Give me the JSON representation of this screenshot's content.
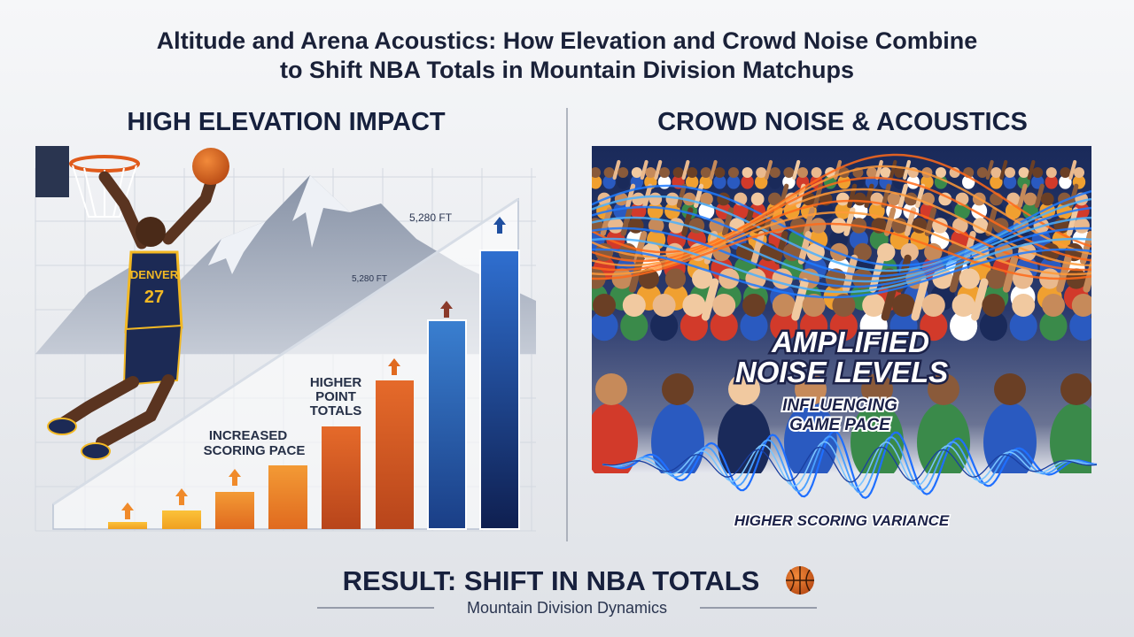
{
  "header": {
    "title_lines": [
      "Altitude and Arena Acoustics: How Elevation and Crowd Noise Combine",
      "to Shift NBA Totals in Mountain Division Matchups"
    ]
  },
  "left_panel": {
    "heading": "HIGH ELEVATION IMPACT",
    "elevation_labels": [
      "5,280 FT",
      "5,280 FT"
    ],
    "annotations": [
      {
        "lines": [
          "HIGHER",
          "POINT",
          "TOTALS"
        ]
      },
      {
        "lines": [
          "INCREASED",
          "SCORING PACE"
        ]
      }
    ],
    "jersey": {
      "team": "DENVER",
      "number": "27"
    }
  },
  "right_panel": {
    "heading": "CROWD NOISE & ACOUSTICS",
    "headline_lines": [
      "AMPLIFIED",
      "NOISE LEVELS"
    ],
    "subhead_lines": [
      "INFLUENCING",
      "GAME PACE"
    ],
    "caption": "HIGHER SCORING VARIANCE"
  },
  "footer": {
    "result": "RESULT: SHIFT IN NBA TOTALS",
    "subtitle": "Mountain Division Dynamics"
  }
}
